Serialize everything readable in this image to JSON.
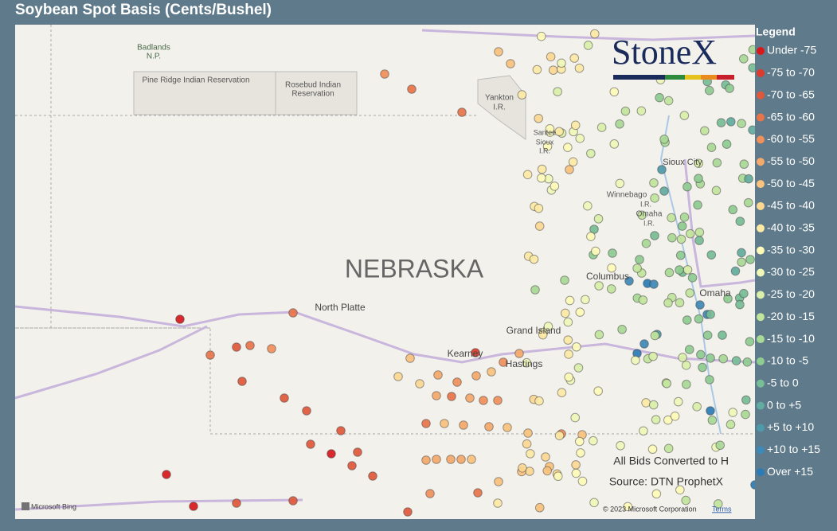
{
  "title": "Soybean Spot Basis (Cents/Bushel)",
  "legend": {
    "title": "Legend",
    "items": [
      {
        "label": "Under -75",
        "color": "#d7191c"
      },
      {
        "label": "-75 to -70",
        "color": "#dc3a2c"
      },
      {
        "label": "-70 to -65",
        "color": "#e0583b"
      },
      {
        "label": "-65 to -60",
        "color": "#e8744a"
      },
      {
        "label": "-60 to -55",
        "color": "#f0905a"
      },
      {
        "label": "-55 to -50",
        "color": "#f5a96a"
      },
      {
        "label": "-50 to -45",
        "color": "#f9c27d"
      },
      {
        "label": "-45 to -40",
        "color": "#fbd792"
      },
      {
        "label": "-40 to -35",
        "color": "#fdeaa5"
      },
      {
        "label": "-35 to -30",
        "color": "#fefbb9"
      },
      {
        "label": "-30 to -25",
        "color": "#f0f8b8"
      },
      {
        "label": "-25 to -20",
        "color": "#daefa9"
      },
      {
        "label": "-20 to -15",
        "color": "#c2e59c"
      },
      {
        "label": "-15 to -10",
        "color": "#a9da95"
      },
      {
        "label": "-10 to -5",
        "color": "#8fcc91"
      },
      {
        "label": "-5 to 0",
        "color": "#77bd96"
      },
      {
        "label": "0 to +5",
        "color": "#62ac9f"
      },
      {
        "label": "+5 to +10",
        "color": "#4f9aaa"
      },
      {
        "label": "+10 to +15",
        "color": "#3f89b7"
      },
      {
        "label": "Over +15",
        "color": "#2c7bb6"
      }
    ]
  },
  "map_labels": [
    "Badlands",
    "N.P.",
    "Pine Ridge Indian Reservation",
    "Rosebud Indian",
    "Reservation",
    "Yankton",
    "I.R.",
    "Santee",
    "Sioux",
    "I.R.",
    "Sioux City",
    "Winnebago",
    "I.R.",
    "Omaha",
    "I.R.",
    "NEBRASKA",
    "North Platte",
    "Columbus",
    "Omaha",
    "Grand Island",
    "Kearney",
    "Hastings"
  ],
  "logo": "StoneX",
  "notes": [
    "All Bids Converted to H",
    "Source: DTN ProphetX"
  ],
  "attribution": {
    "bing": "Microsoft Bing",
    "copyright": "© 2023 Microsoft Corporation",
    "terms": "Terms"
  }
}
